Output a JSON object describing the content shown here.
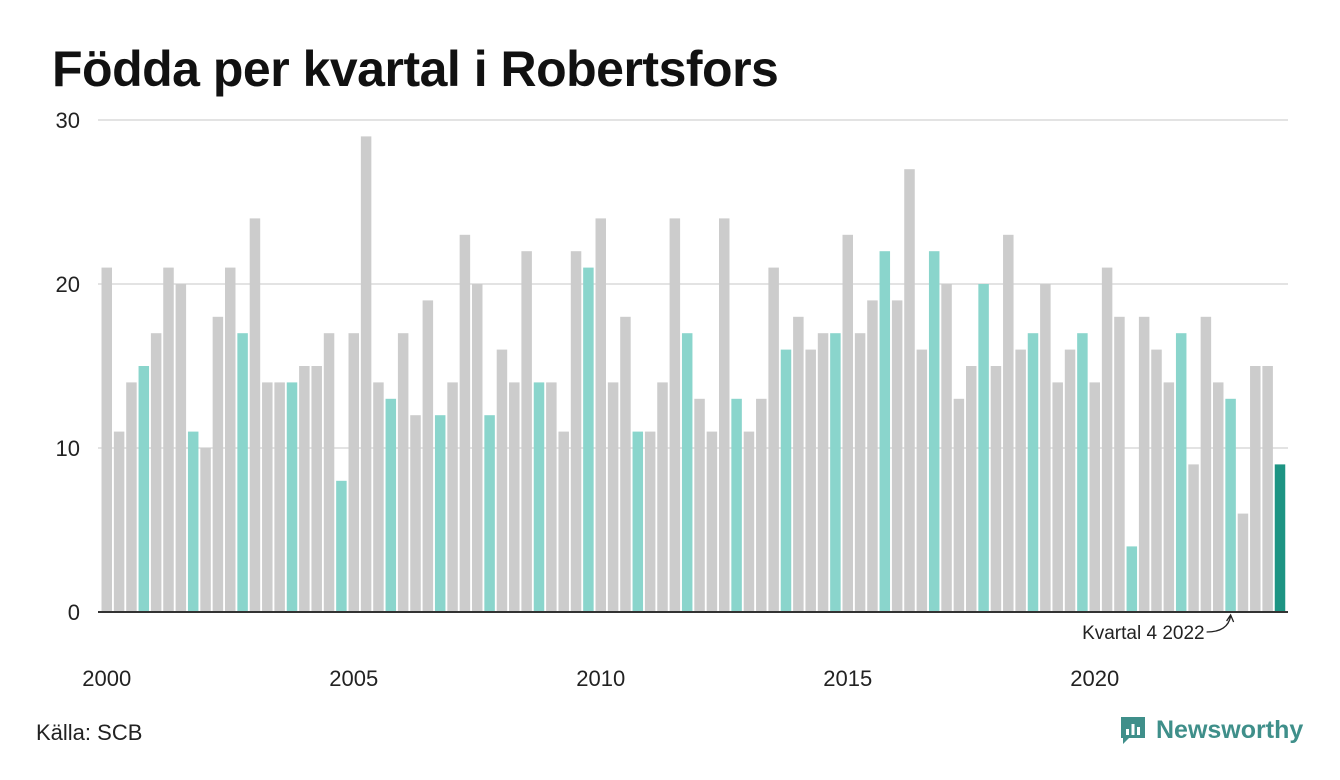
{
  "header": {
    "title": "Födda per kvartal i Robertsfors"
  },
  "footer": {
    "source": "Källa: SCB",
    "brand": "Newsworthy"
  },
  "colors": {
    "other_quarter": "#cccccc",
    "q4": "#8ad5cc",
    "latest": "#1d9483",
    "grid": "#e3e3e3",
    "axis": "#333333"
  },
  "chart_data": {
    "type": "bar",
    "title": "Födda per kvartal i Robertsfors",
    "xlabel": "",
    "ylabel": "",
    "ylim": [
      0,
      30
    ],
    "yticks": [
      0,
      10,
      20,
      30
    ],
    "xticks": [
      "2000",
      "2005",
      "2010",
      "2015",
      "2020"
    ],
    "grid": true,
    "start_year": 2000,
    "values": [
      21,
      11,
      14,
      15,
      17,
      21,
      20,
      11,
      10,
      18,
      21,
      17,
      24,
      14,
      14,
      14,
      15,
      15,
      17,
      8,
      17,
      29,
      14,
      13,
      17,
      12,
      19,
      12,
      14,
      23,
      20,
      12,
      16,
      14,
      22,
      14,
      14,
      11,
      22,
      21,
      24,
      14,
      18,
      11,
      11,
      14,
      24,
      17,
      13,
      11,
      24,
      13,
      11,
      13,
      21,
      16,
      18,
      16,
      17,
      17,
      23,
      17,
      19,
      22,
      19,
      27,
      16,
      22,
      20,
      13,
      15,
      20,
      15,
      23,
      16,
      17,
      20,
      14,
      16,
      17,
      14,
      21,
      18,
      4,
      18,
      16,
      14,
      17,
      9,
      18,
      14,
      13,
      6,
      15,
      15,
      9
    ],
    "annotation": {
      "text": "Kvartal 4 2022",
      "year": 2022,
      "quarter": 4
    }
  }
}
